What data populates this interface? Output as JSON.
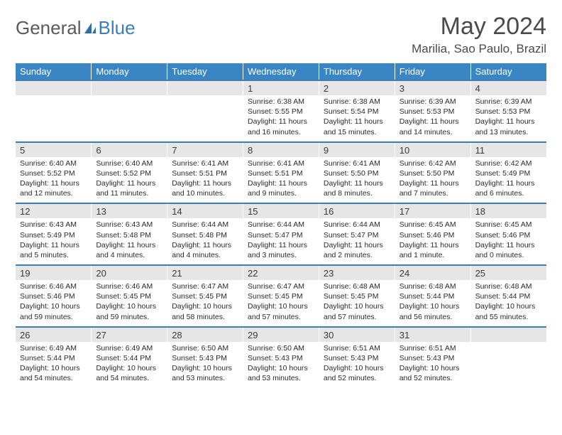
{
  "logo": {
    "part1": "General",
    "part2": "Blue"
  },
  "title": "May 2024",
  "location": "Marilia, Sao Paulo, Brazil",
  "daysOfWeek": [
    "Sunday",
    "Monday",
    "Tuesday",
    "Wednesday",
    "Thursday",
    "Friday",
    "Saturday"
  ],
  "colors": {
    "headerBlue": "#3a85c4",
    "borderBlue": "#3a7db8",
    "numBg": "#e6e6e6",
    "logoGray": "#5a5a5a",
    "logoBlue": "#3a7db8"
  },
  "weeks": [
    [
      {
        "n": "",
        "sr": "",
        "ss": "",
        "dl": ""
      },
      {
        "n": "",
        "sr": "",
        "ss": "",
        "dl": ""
      },
      {
        "n": "",
        "sr": "",
        "ss": "",
        "dl": ""
      },
      {
        "n": "1",
        "sr": "Sunrise: 6:38 AM",
        "ss": "Sunset: 5:55 PM",
        "dl": "Daylight: 11 hours and 16 minutes."
      },
      {
        "n": "2",
        "sr": "Sunrise: 6:38 AM",
        "ss": "Sunset: 5:54 PM",
        "dl": "Daylight: 11 hours and 15 minutes."
      },
      {
        "n": "3",
        "sr": "Sunrise: 6:39 AM",
        "ss": "Sunset: 5:53 PM",
        "dl": "Daylight: 11 hours and 14 minutes."
      },
      {
        "n": "4",
        "sr": "Sunrise: 6:39 AM",
        "ss": "Sunset: 5:53 PM",
        "dl": "Daylight: 11 hours and 13 minutes."
      }
    ],
    [
      {
        "n": "5",
        "sr": "Sunrise: 6:40 AM",
        "ss": "Sunset: 5:52 PM",
        "dl": "Daylight: 11 hours and 12 minutes."
      },
      {
        "n": "6",
        "sr": "Sunrise: 6:40 AM",
        "ss": "Sunset: 5:52 PM",
        "dl": "Daylight: 11 hours and 11 minutes."
      },
      {
        "n": "7",
        "sr": "Sunrise: 6:41 AM",
        "ss": "Sunset: 5:51 PM",
        "dl": "Daylight: 11 hours and 10 minutes."
      },
      {
        "n": "8",
        "sr": "Sunrise: 6:41 AM",
        "ss": "Sunset: 5:51 PM",
        "dl": "Daylight: 11 hours and 9 minutes."
      },
      {
        "n": "9",
        "sr": "Sunrise: 6:41 AM",
        "ss": "Sunset: 5:50 PM",
        "dl": "Daylight: 11 hours and 8 minutes."
      },
      {
        "n": "10",
        "sr": "Sunrise: 6:42 AM",
        "ss": "Sunset: 5:50 PM",
        "dl": "Daylight: 11 hours and 7 minutes."
      },
      {
        "n": "11",
        "sr": "Sunrise: 6:42 AM",
        "ss": "Sunset: 5:49 PM",
        "dl": "Daylight: 11 hours and 6 minutes."
      }
    ],
    [
      {
        "n": "12",
        "sr": "Sunrise: 6:43 AM",
        "ss": "Sunset: 5:49 PM",
        "dl": "Daylight: 11 hours and 5 minutes."
      },
      {
        "n": "13",
        "sr": "Sunrise: 6:43 AM",
        "ss": "Sunset: 5:48 PM",
        "dl": "Daylight: 11 hours and 4 minutes."
      },
      {
        "n": "14",
        "sr": "Sunrise: 6:44 AM",
        "ss": "Sunset: 5:48 PM",
        "dl": "Daylight: 11 hours and 4 minutes."
      },
      {
        "n": "15",
        "sr": "Sunrise: 6:44 AM",
        "ss": "Sunset: 5:47 PM",
        "dl": "Daylight: 11 hours and 3 minutes."
      },
      {
        "n": "16",
        "sr": "Sunrise: 6:44 AM",
        "ss": "Sunset: 5:47 PM",
        "dl": "Daylight: 11 hours and 2 minutes."
      },
      {
        "n": "17",
        "sr": "Sunrise: 6:45 AM",
        "ss": "Sunset: 5:46 PM",
        "dl": "Daylight: 11 hours and 1 minute."
      },
      {
        "n": "18",
        "sr": "Sunrise: 6:45 AM",
        "ss": "Sunset: 5:46 PM",
        "dl": "Daylight: 11 hours and 0 minutes."
      }
    ],
    [
      {
        "n": "19",
        "sr": "Sunrise: 6:46 AM",
        "ss": "Sunset: 5:46 PM",
        "dl": "Daylight: 10 hours and 59 minutes."
      },
      {
        "n": "20",
        "sr": "Sunrise: 6:46 AM",
        "ss": "Sunset: 5:45 PM",
        "dl": "Daylight: 10 hours and 59 minutes."
      },
      {
        "n": "21",
        "sr": "Sunrise: 6:47 AM",
        "ss": "Sunset: 5:45 PM",
        "dl": "Daylight: 10 hours and 58 minutes."
      },
      {
        "n": "22",
        "sr": "Sunrise: 6:47 AM",
        "ss": "Sunset: 5:45 PM",
        "dl": "Daylight: 10 hours and 57 minutes."
      },
      {
        "n": "23",
        "sr": "Sunrise: 6:48 AM",
        "ss": "Sunset: 5:45 PM",
        "dl": "Daylight: 10 hours and 57 minutes."
      },
      {
        "n": "24",
        "sr": "Sunrise: 6:48 AM",
        "ss": "Sunset: 5:44 PM",
        "dl": "Daylight: 10 hours and 56 minutes."
      },
      {
        "n": "25",
        "sr": "Sunrise: 6:48 AM",
        "ss": "Sunset: 5:44 PM",
        "dl": "Daylight: 10 hours and 55 minutes."
      }
    ],
    [
      {
        "n": "26",
        "sr": "Sunrise: 6:49 AM",
        "ss": "Sunset: 5:44 PM",
        "dl": "Daylight: 10 hours and 54 minutes."
      },
      {
        "n": "27",
        "sr": "Sunrise: 6:49 AM",
        "ss": "Sunset: 5:44 PM",
        "dl": "Daylight: 10 hours and 54 minutes."
      },
      {
        "n": "28",
        "sr": "Sunrise: 6:50 AM",
        "ss": "Sunset: 5:43 PM",
        "dl": "Daylight: 10 hours and 53 minutes."
      },
      {
        "n": "29",
        "sr": "Sunrise: 6:50 AM",
        "ss": "Sunset: 5:43 PM",
        "dl": "Daylight: 10 hours and 53 minutes."
      },
      {
        "n": "30",
        "sr": "Sunrise: 6:51 AM",
        "ss": "Sunset: 5:43 PM",
        "dl": "Daylight: 10 hours and 52 minutes."
      },
      {
        "n": "31",
        "sr": "Sunrise: 6:51 AM",
        "ss": "Sunset: 5:43 PM",
        "dl": "Daylight: 10 hours and 52 minutes."
      },
      {
        "n": "",
        "sr": "",
        "ss": "",
        "dl": ""
      }
    ]
  ]
}
